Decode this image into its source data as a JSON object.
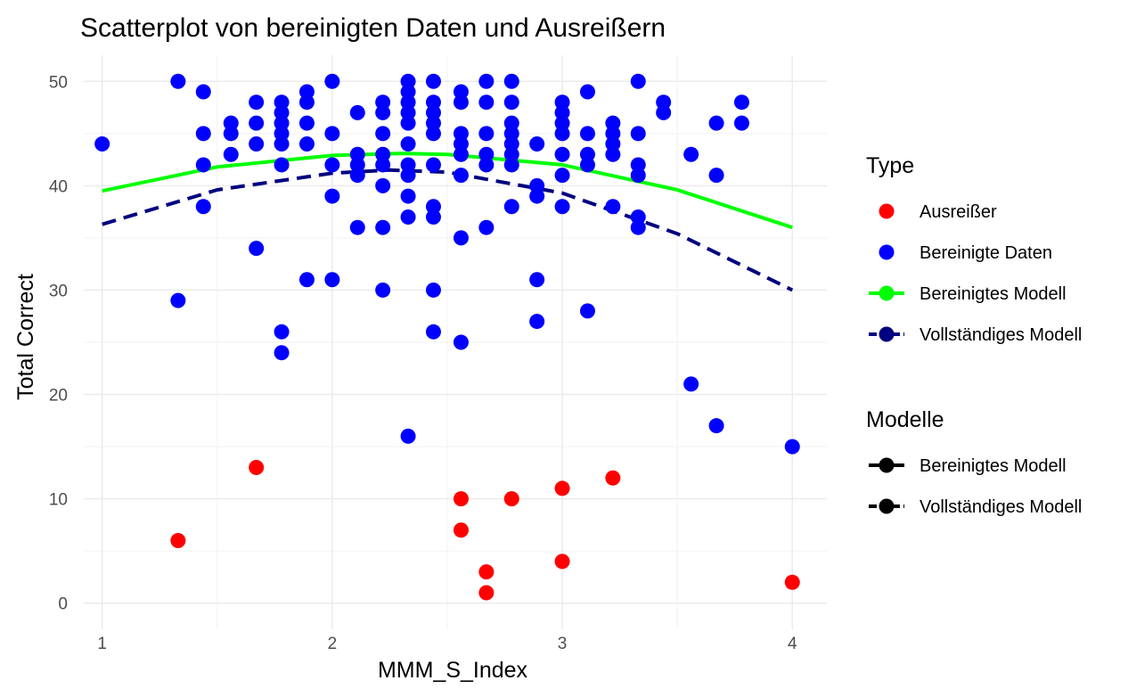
{
  "chart_data": {
    "type": "scatter",
    "title": "Scatterplot von bereinigten Daten und Ausreißern",
    "xlabel": "MMM_S_Index",
    "ylabel": "Total Correct",
    "xlim": [
      0.92,
      4.15
    ],
    "ylim": [
      -2.5,
      52.5
    ],
    "x_ticks": [
      1,
      2,
      3,
      4
    ],
    "x_tick_labels": [
      "1",
      "2",
      "3",
      "4"
    ],
    "y_ticks": [
      0,
      10,
      20,
      30,
      40,
      50
    ],
    "y_tick_labels": [
      "0",
      "10",
      "20",
      "30",
      "40",
      "50"
    ],
    "grid": true,
    "legend_position": "right",
    "legend": {
      "type_title": "Type",
      "type_items": [
        {
          "label": "Ausreißer",
          "kind": "point",
          "color": "#ff0000"
        },
        {
          "label": "Bereinigte Daten",
          "kind": "point",
          "color": "#0000ff"
        },
        {
          "label": "Bereinigtes Modell",
          "kind": "line-point",
          "color": "#00ff00",
          "dash": false
        },
        {
          "label": "Vollständiges Modell",
          "kind": "line-point",
          "color": "#000080",
          "dash": true
        }
      ],
      "model_title": "Modelle",
      "model_items": [
        {
          "label": "Bereinigtes Modell",
          "kind": "line-point",
          "color": "#000000",
          "dash": false
        },
        {
          "label": "Vollständiges Modell",
          "kind": "line-point",
          "color": "#000000",
          "dash": true
        }
      ]
    },
    "series": [
      {
        "name": "Ausreißer",
        "kind": "points",
        "color": "#ff0000",
        "points": [
          [
            1.33,
            6
          ],
          [
            1.67,
            13
          ],
          [
            2.56,
            10
          ],
          [
            2.56,
            7
          ],
          [
            2.67,
            3
          ],
          [
            2.67,
            1
          ],
          [
            2.78,
            10
          ],
          [
            3.0,
            11
          ],
          [
            3.0,
            4
          ],
          [
            3.22,
            12
          ],
          [
            4.0,
            2
          ]
        ]
      },
      {
        "name": "Bereinigte Daten",
        "kind": "points",
        "color": "#0000ff",
        "points": [
          [
            1.0,
            44
          ],
          [
            1.33,
            50
          ],
          [
            1.33,
            29
          ],
          [
            1.44,
            49
          ],
          [
            1.44,
            45
          ],
          [
            1.44,
            42
          ],
          [
            1.44,
            38
          ],
          [
            1.56,
            46
          ],
          [
            1.56,
            45
          ],
          [
            1.56,
            43
          ],
          [
            1.67,
            48
          ],
          [
            1.67,
            46
          ],
          [
            1.67,
            44
          ],
          [
            1.67,
            34
          ],
          [
            1.78,
            48
          ],
          [
            1.78,
            47
          ],
          [
            1.78,
            46
          ],
          [
            1.78,
            45
          ],
          [
            1.78,
            44
          ],
          [
            1.78,
            42
          ],
          [
            1.78,
            26
          ],
          [
            1.78,
            24
          ],
          [
            1.89,
            49
          ],
          [
            1.89,
            48
          ],
          [
            1.89,
            46
          ],
          [
            1.89,
            44
          ],
          [
            1.89,
            31
          ],
          [
            2.0,
            50
          ],
          [
            2.0,
            45
          ],
          [
            2.0,
            42
          ],
          [
            2.0,
            39
          ],
          [
            2.0,
            31
          ],
          [
            2.11,
            47
          ],
          [
            2.11,
            43
          ],
          [
            2.11,
            42
          ],
          [
            2.11,
            41
          ],
          [
            2.11,
            36
          ],
          [
            2.22,
            48
          ],
          [
            2.22,
            47
          ],
          [
            2.22,
            45
          ],
          [
            2.22,
            43
          ],
          [
            2.22,
            42
          ],
          [
            2.22,
            40
          ],
          [
            2.22,
            36
          ],
          [
            2.22,
            30
          ],
          [
            2.33,
            50
          ],
          [
            2.33,
            49
          ],
          [
            2.33,
            48
          ],
          [
            2.33,
            47
          ],
          [
            2.33,
            46
          ],
          [
            2.33,
            44
          ],
          [
            2.33,
            42
          ],
          [
            2.33,
            41
          ],
          [
            2.33,
            39
          ],
          [
            2.33,
            37
          ],
          [
            2.33,
            16
          ],
          [
            2.44,
            50
          ],
          [
            2.44,
            48
          ],
          [
            2.44,
            47
          ],
          [
            2.44,
            46
          ],
          [
            2.44,
            45
          ],
          [
            2.44,
            42
          ],
          [
            2.44,
            38
          ],
          [
            2.44,
            37
          ],
          [
            2.44,
            30
          ],
          [
            2.44,
            26
          ],
          [
            2.56,
            49
          ],
          [
            2.56,
            48
          ],
          [
            2.56,
            45
          ],
          [
            2.56,
            44
          ],
          [
            2.56,
            43
          ],
          [
            2.56,
            41
          ],
          [
            2.56,
            35
          ],
          [
            2.56,
            25
          ],
          [
            2.67,
            50
          ],
          [
            2.67,
            48
          ],
          [
            2.67,
            45
          ],
          [
            2.67,
            43
          ],
          [
            2.67,
            42
          ],
          [
            2.67,
            36
          ],
          [
            2.78,
            50
          ],
          [
            2.78,
            48
          ],
          [
            2.78,
            46
          ],
          [
            2.78,
            45
          ],
          [
            2.78,
            44
          ],
          [
            2.78,
            43
          ],
          [
            2.78,
            42
          ],
          [
            2.78,
            38
          ],
          [
            2.89,
            44
          ],
          [
            2.89,
            40
          ],
          [
            2.89,
            39
          ],
          [
            2.89,
            31
          ],
          [
            2.89,
            27
          ],
          [
            3.0,
            48
          ],
          [
            3.0,
            47
          ],
          [
            3.0,
            46
          ],
          [
            3.0,
            45
          ],
          [
            3.0,
            43
          ],
          [
            3.0,
            41
          ],
          [
            3.0,
            38
          ],
          [
            3.11,
            49
          ],
          [
            3.11,
            45
          ],
          [
            3.11,
            43
          ],
          [
            3.11,
            42
          ],
          [
            3.11,
            28
          ],
          [
            3.22,
            46
          ],
          [
            3.22,
            45
          ],
          [
            3.22,
            44
          ],
          [
            3.22,
            43
          ],
          [
            3.22,
            38
          ],
          [
            3.33,
            50
          ],
          [
            3.33,
            45
          ],
          [
            3.33,
            42
          ],
          [
            3.33,
            41
          ],
          [
            3.33,
            37
          ],
          [
            3.33,
            36
          ],
          [
            3.44,
            48
          ],
          [
            3.44,
            47
          ],
          [
            3.56,
            43
          ],
          [
            3.56,
            21
          ],
          [
            3.67,
            46
          ],
          [
            3.67,
            41
          ],
          [
            3.67,
            17
          ],
          [
            3.78,
            48
          ],
          [
            3.78,
            46
          ],
          [
            4.0,
            15
          ]
        ]
      },
      {
        "name": "Bereinigtes Modell",
        "kind": "line",
        "color": "#00ff00",
        "dash": false,
        "points": [
          [
            1.0,
            39.5
          ],
          [
            1.5,
            41.8
          ],
          [
            2.0,
            42.9
          ],
          [
            2.3,
            43.1
          ],
          [
            2.5,
            43.0
          ],
          [
            3.0,
            42.0
          ],
          [
            3.5,
            39.6
          ],
          [
            4.0,
            36.0
          ]
        ]
      },
      {
        "name": "Vollständiges Modell",
        "kind": "line",
        "color": "#000080",
        "dash": true,
        "points": [
          [
            1.0,
            36.3
          ],
          [
            1.5,
            39.6
          ],
          [
            2.0,
            41.2
          ],
          [
            2.25,
            41.5
          ],
          [
            2.5,
            41.3
          ],
          [
            3.0,
            39.3
          ],
          [
            3.5,
            35.4
          ],
          [
            4.0,
            30.0
          ]
        ]
      }
    ]
  }
}
